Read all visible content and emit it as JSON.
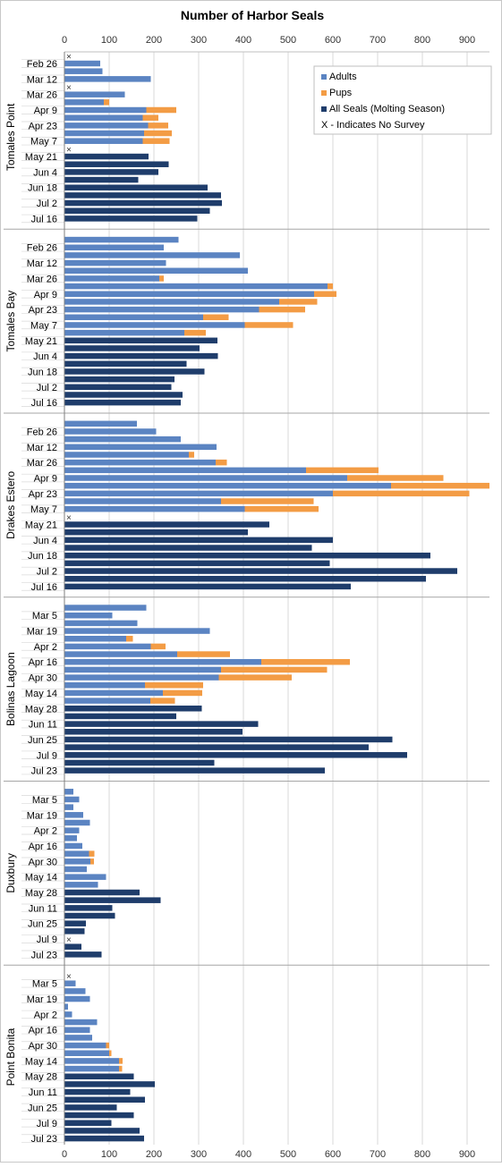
{
  "chart_data": {
    "type": "bar",
    "orientation": "horizontal",
    "stacked": true,
    "title": "Number of Harbor Seals",
    "xlim": [
      0,
      950
    ],
    "x_ticks": [
      0,
      100,
      200,
      300,
      400,
      500,
      600,
      700,
      800,
      900
    ],
    "grid": true,
    "legend_position": "top-right",
    "legend": [
      {
        "label": "Adults",
        "color": "#5b84c2"
      },
      {
        "label": "Pups",
        "color": "#f39c45"
      },
      {
        "label": "All Seals (Molting Season)",
        "color": "#1f3d6b"
      },
      {
        "label": "X - Indicates No Survey",
        "color": ""
      }
    ],
    "no_survey_marker": "×",
    "groups": [
      {
        "name": "Tomales Point",
        "tick_labels": [
          "Feb 26",
          "Mar 12",
          "Mar 26",
          "Apr 9",
          "Apr 23",
          "May 7",
          "May 21",
          "Jun 4",
          "Jun 18",
          "Jul 2",
          "Jul 16"
        ],
        "bars": [
          {
            "adults": null,
            "pups": null,
            "all": null
          },
          {
            "adults": 80,
            "pups": 0,
            "all": null
          },
          {
            "adults": 85,
            "pups": 0,
            "all": null
          },
          {
            "adults": 193,
            "pups": 0,
            "all": null
          },
          {
            "adults": null,
            "pups": null,
            "all": null
          },
          {
            "adults": 135,
            "pups": 0,
            "all": null
          },
          {
            "adults": 88,
            "pups": 12,
            "all": null
          },
          {
            "adults": 183,
            "pups": 67,
            "all": null
          },
          {
            "adults": 175,
            "pups": 35,
            "all": null
          },
          {
            "adults": 187,
            "pups": 45,
            "all": null
          },
          {
            "adults": 178,
            "pups": 62,
            "all": null
          },
          {
            "adults": 175,
            "pups": 60,
            "all": null
          },
          {
            "adults": null,
            "pups": null,
            "all": null
          },
          {
            "adults": null,
            "pups": null,
            "all": 188
          },
          {
            "adults": null,
            "pups": null,
            "all": 233
          },
          {
            "adults": null,
            "pups": null,
            "all": 210
          },
          {
            "adults": null,
            "pups": null,
            "all": 165
          },
          {
            "adults": null,
            "pups": null,
            "all": 320
          },
          {
            "adults": null,
            "pups": null,
            "all": 350
          },
          {
            "adults": null,
            "pups": null,
            "all": 352
          },
          {
            "adults": null,
            "pups": null,
            "all": 325
          },
          {
            "adults": null,
            "pups": null,
            "all": 297
          }
        ]
      },
      {
        "name": "Tomales Bay",
        "tick_labels": [
          "Feb 26",
          "Mar 12",
          "Mar 26",
          "Apr 9",
          "Apr 23",
          "May 7",
          "May 21",
          "Jun 4",
          "Jun 18",
          "Jul 2",
          "Jul 16"
        ],
        "bars": [
          {
            "adults": 255,
            "pups": 0,
            "all": null
          },
          {
            "adults": 222,
            "pups": 0,
            "all": null
          },
          {
            "adults": 392,
            "pups": 0,
            "all": null
          },
          {
            "adults": 227,
            "pups": 0,
            "all": null
          },
          {
            "adults": 410,
            "pups": 0,
            "all": null
          },
          {
            "adults": 212,
            "pups": 10,
            "all": null
          },
          {
            "adults": 588,
            "pups": 12,
            "all": null
          },
          {
            "adults": 558,
            "pups": 50,
            "all": null
          },
          {
            "adults": 480,
            "pups": 85,
            "all": null
          },
          {
            "adults": 435,
            "pups": 103,
            "all": null
          },
          {
            "adults": 310,
            "pups": 57,
            "all": null
          },
          {
            "adults": 403,
            "pups": 108,
            "all": null
          },
          {
            "adults": 268,
            "pups": 48,
            "all": null
          },
          {
            "adults": null,
            "pups": null,
            "all": 342
          },
          {
            "adults": null,
            "pups": null,
            "all": 302
          },
          {
            "adults": null,
            "pups": null,
            "all": 343
          },
          {
            "adults": null,
            "pups": null,
            "all": 273
          },
          {
            "adults": null,
            "pups": null,
            "all": 313
          },
          {
            "adults": null,
            "pups": null,
            "all": 246
          },
          {
            "adults": null,
            "pups": null,
            "all": 239
          },
          {
            "adults": null,
            "pups": null,
            "all": 264
          },
          {
            "adults": null,
            "pups": null,
            "all": 260
          }
        ]
      },
      {
        "name": "Drakes Estero",
        "tick_labels": [
          "Feb 26",
          "Mar 12",
          "Mar 26",
          "Apr 9",
          "Apr 23",
          "May 7",
          "May 21",
          "Jun 4",
          "Jun 18",
          "Jul 2",
          "Jul 16"
        ],
        "bars": [
          {
            "adults": 162,
            "pups": 0,
            "all": null
          },
          {
            "adults": 205,
            "pups": 0,
            "all": null
          },
          {
            "adults": 260,
            "pups": 0,
            "all": null
          },
          {
            "adults": 340,
            "pups": 0,
            "all": null
          },
          {
            "adults": 278,
            "pups": 12,
            "all": null
          },
          {
            "adults": 338,
            "pups": 25,
            "all": null
          },
          {
            "adults": 540,
            "pups": 162,
            "all": null
          },
          {
            "adults": 632,
            "pups": 215,
            "all": null
          },
          {
            "adults": 730,
            "pups": 220,
            "all": null
          },
          {
            "adults": 600,
            "pups": 305,
            "all": null
          },
          {
            "adults": 350,
            "pups": 207,
            "all": null
          },
          {
            "adults": 403,
            "pups": 165,
            "all": null
          },
          {
            "adults": null,
            "pups": null,
            "all": null
          },
          {
            "adults": null,
            "pups": null,
            "all": 458
          },
          {
            "adults": null,
            "pups": null,
            "all": 410
          },
          {
            "adults": null,
            "pups": null,
            "all": 600
          },
          {
            "adults": null,
            "pups": null,
            "all": 553
          },
          {
            "adults": null,
            "pups": null,
            "all": 818
          },
          {
            "adults": null,
            "pups": null,
            "all": 593
          },
          {
            "adults": null,
            "pups": null,
            "all": 878
          },
          {
            "adults": null,
            "pups": null,
            "all": 808
          },
          {
            "adults": null,
            "pups": null,
            "all": 640
          }
        ]
      },
      {
        "name": "Bolinas Lagoon",
        "tick_labels": [
          "Mar 5",
          "Mar 19",
          "Apr 2",
          "Apr 16",
          "Apr 30",
          "May 14",
          "May 28",
          "Jun 11",
          "Jun 25",
          "Jul 9",
          "Jul 23"
        ],
        "bars": [
          {
            "adults": 183,
            "pups": 0,
            "all": null
          },
          {
            "adults": 107,
            "pups": 0,
            "all": null
          },
          {
            "adults": 163,
            "pups": 0,
            "all": null
          },
          {
            "adults": 325,
            "pups": 0,
            "all": null
          },
          {
            "adults": 138,
            "pups": 15,
            "all": null
          },
          {
            "adults": 193,
            "pups": 33,
            "all": null
          },
          {
            "adults": 252,
            "pups": 118,
            "all": null
          },
          {
            "adults": 440,
            "pups": 198,
            "all": null
          },
          {
            "adults": 350,
            "pups": 237,
            "all": null
          },
          {
            "adults": 345,
            "pups": 163,
            "all": null
          },
          {
            "adults": 180,
            "pups": 130,
            "all": null
          },
          {
            "adults": 220,
            "pups": 88,
            "all": null
          },
          {
            "adults": 192,
            "pups": 55,
            "all": null
          },
          {
            "adults": null,
            "pups": null,
            "all": 307
          },
          {
            "adults": null,
            "pups": null,
            "all": 250
          },
          {
            "adults": null,
            "pups": null,
            "all": 433
          },
          {
            "adults": null,
            "pups": null,
            "all": 398
          },
          {
            "adults": null,
            "pups": null,
            "all": 733
          },
          {
            "adults": null,
            "pups": null,
            "all": 680
          },
          {
            "adults": null,
            "pups": null,
            "all": 766
          },
          {
            "adults": null,
            "pups": null,
            "all": 335
          },
          {
            "adults": null,
            "pups": null,
            "all": 582
          }
        ]
      },
      {
        "name": "Duxbury",
        "tick_labels": [
          "Mar 5",
          "Mar 19",
          "Apr 2",
          "Apr 16",
          "Apr 30",
          "May 14",
          "May 28",
          "Jun 11",
          "Jun 25",
          "Jul 9",
          "Jul 23"
        ],
        "bars": [
          {
            "adults": 20,
            "pups": 0,
            "all": null
          },
          {
            "adults": 33,
            "pups": 0,
            "all": null
          },
          {
            "adults": 20,
            "pups": 0,
            "all": null
          },
          {
            "adults": 42,
            "pups": 0,
            "all": null
          },
          {
            "adults": 57,
            "pups": 0,
            "all": null
          },
          {
            "adults": 33,
            "pups": 0,
            "all": null
          },
          {
            "adults": 28,
            "pups": 0,
            "all": null
          },
          {
            "adults": 40,
            "pups": 0,
            "all": null
          },
          {
            "adults": 55,
            "pups": 12,
            "all": null
          },
          {
            "adults": 58,
            "pups": 8,
            "all": null
          },
          {
            "adults": 50,
            "pups": 0,
            "all": null
          },
          {
            "adults": 93,
            "pups": 0,
            "all": null
          },
          {
            "adults": 75,
            "pups": 0,
            "all": null
          },
          {
            "adults": null,
            "pups": null,
            "all": 168
          },
          {
            "adults": null,
            "pups": null,
            "all": 215
          },
          {
            "adults": null,
            "pups": null,
            "all": 107
          },
          {
            "adults": null,
            "pups": null,
            "all": 113
          },
          {
            "adults": null,
            "pups": null,
            "all": 48
          },
          {
            "adults": null,
            "pups": null,
            "all": 45
          },
          {
            "adults": null,
            "pups": null,
            "all": null
          },
          {
            "adults": null,
            "pups": null,
            "all": 38
          },
          {
            "adults": null,
            "pups": null,
            "all": 83
          }
        ]
      },
      {
        "name": "Point Bonita",
        "tick_labels": [
          "Mar 5",
          "Mar 19",
          "Apr 2",
          "Apr 16",
          "Apr 30",
          "May 14",
          "May 28",
          "Jun 11",
          "Jun 25",
          "Jul 9",
          "Jul 23"
        ],
        "bars": [
          {
            "adults": null,
            "pups": null,
            "all": null
          },
          {
            "adults": 25,
            "pups": 0,
            "all": null
          },
          {
            "adults": 47,
            "pups": 0,
            "all": null
          },
          {
            "adults": 57,
            "pups": 0,
            "all": null
          },
          {
            "adults": 8,
            "pups": 0,
            "all": null
          },
          {
            "adults": 17,
            "pups": 0,
            "all": null
          },
          {
            "adults": 73,
            "pups": 0,
            "all": null
          },
          {
            "adults": 57,
            "pups": 0,
            "all": null
          },
          {
            "adults": 62,
            "pups": 0,
            "all": null
          },
          {
            "adults": 93,
            "pups": 7,
            "all": null
          },
          {
            "adults": 100,
            "pups": 5,
            "all": null
          },
          {
            "adults": 122,
            "pups": 8,
            "all": null
          },
          {
            "adults": 122,
            "pups": 7,
            "all": null
          },
          {
            "adults": null,
            "pups": null,
            "all": 155
          },
          {
            "adults": null,
            "pups": null,
            "all": 202
          },
          {
            "adults": null,
            "pups": null,
            "all": 147
          },
          {
            "adults": null,
            "pups": null,
            "all": 180
          },
          {
            "adults": null,
            "pups": null,
            "all": 117
          },
          {
            "adults": null,
            "pups": null,
            "all": 155
          },
          {
            "adults": null,
            "pups": null,
            "all": 105
          },
          {
            "adults": null,
            "pups": null,
            "all": 168
          },
          {
            "adults": null,
            "pups": null,
            "all": 178
          }
        ]
      }
    ]
  }
}
